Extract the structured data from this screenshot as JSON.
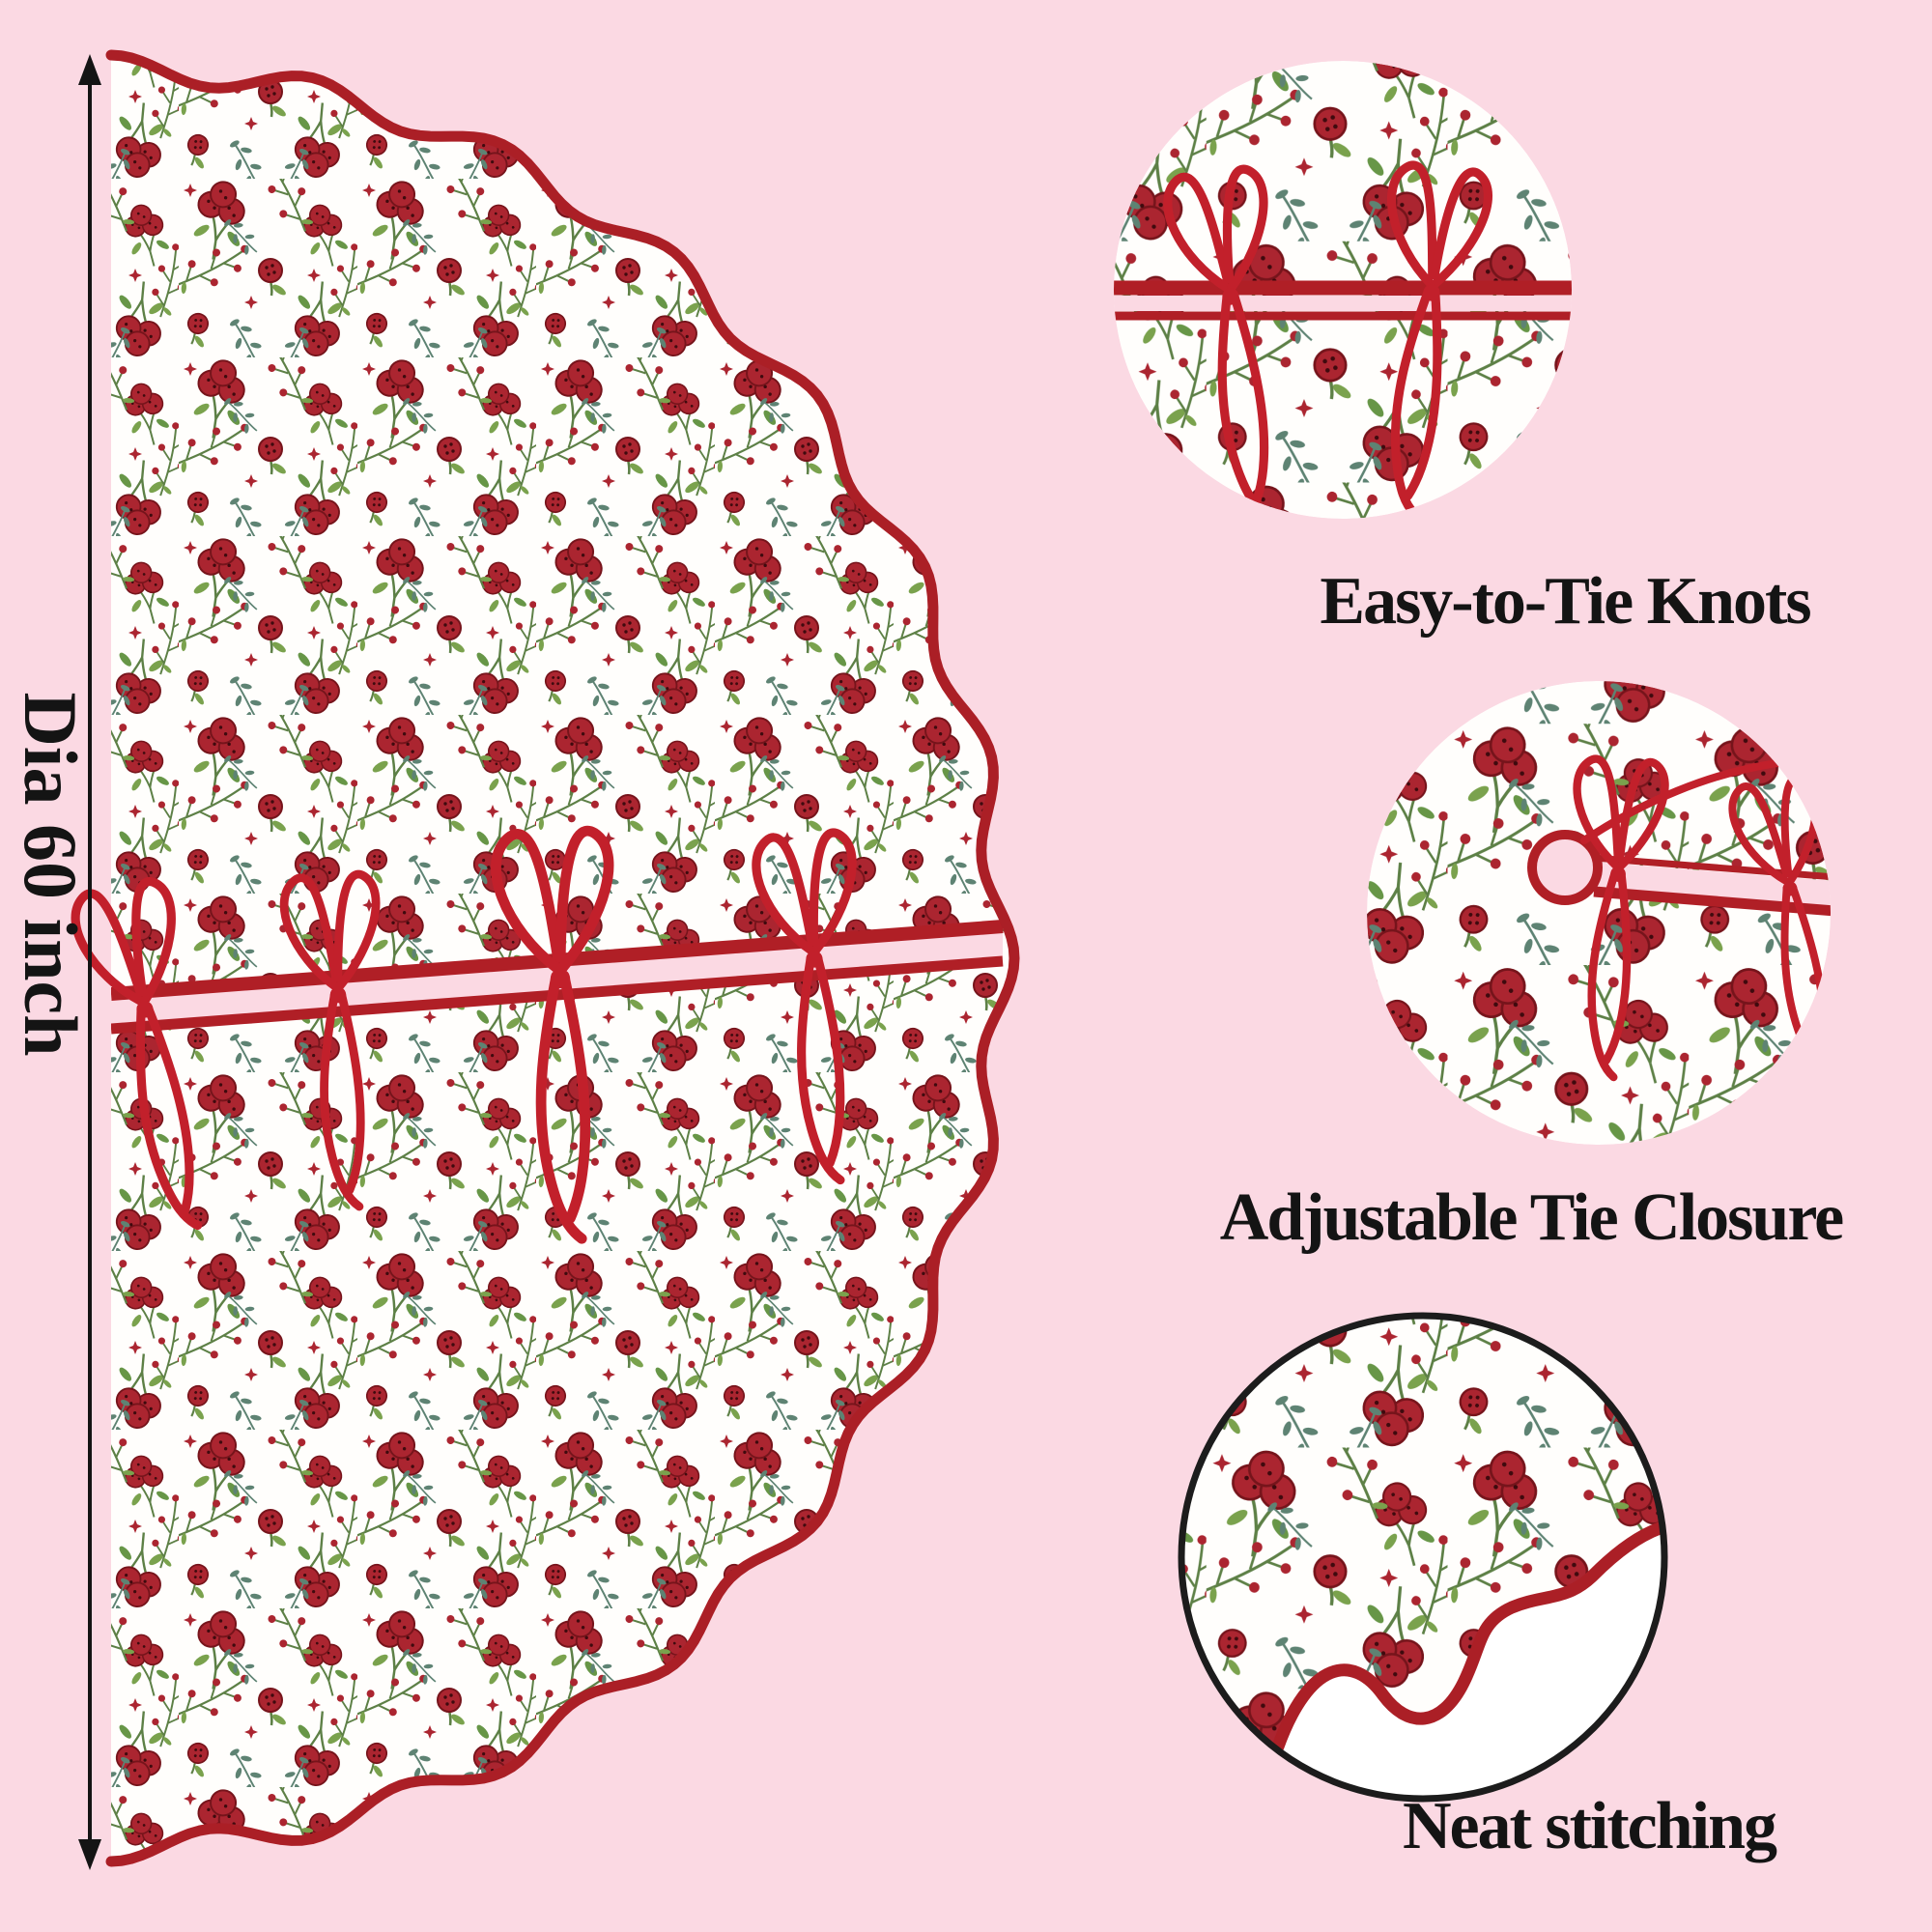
{
  "dimension": {
    "label": "Dia 60 inch"
  },
  "features": [
    {
      "id": "easy-tie-knots",
      "caption": "Easy-to-Tie Knots"
    },
    {
      "id": "adjustable-tie-closure",
      "caption": "Adjustable Tie Closure"
    },
    {
      "id": "neat-stitching",
      "caption": "Neat stitching"
    }
  ],
  "icons": {
    "dimension_arrow": "vertical-double-arrow",
    "tie_bow": "ribbon-bow",
    "trunk_hole": "center-hole",
    "scallop_edge": "scalloped-piping-edge"
  },
  "colors": {
    "background": "#fbd9e3",
    "fabric_white": "#fffefc",
    "berry_red": "#ab2530",
    "berry_outline": "#76141b",
    "berry_dot": "#3f0a0e",
    "ribbon_red": "#c2202b",
    "piping_red": "#ab1f26",
    "tape_red": "#b01f26",
    "leaf_green": "#7aa24d",
    "leaf_green_dark": "#679647",
    "stem_green": "#5d8046",
    "teal_green": "#5e8373",
    "outline_black": "#1c1c1c",
    "text_black": "#141414"
  }
}
